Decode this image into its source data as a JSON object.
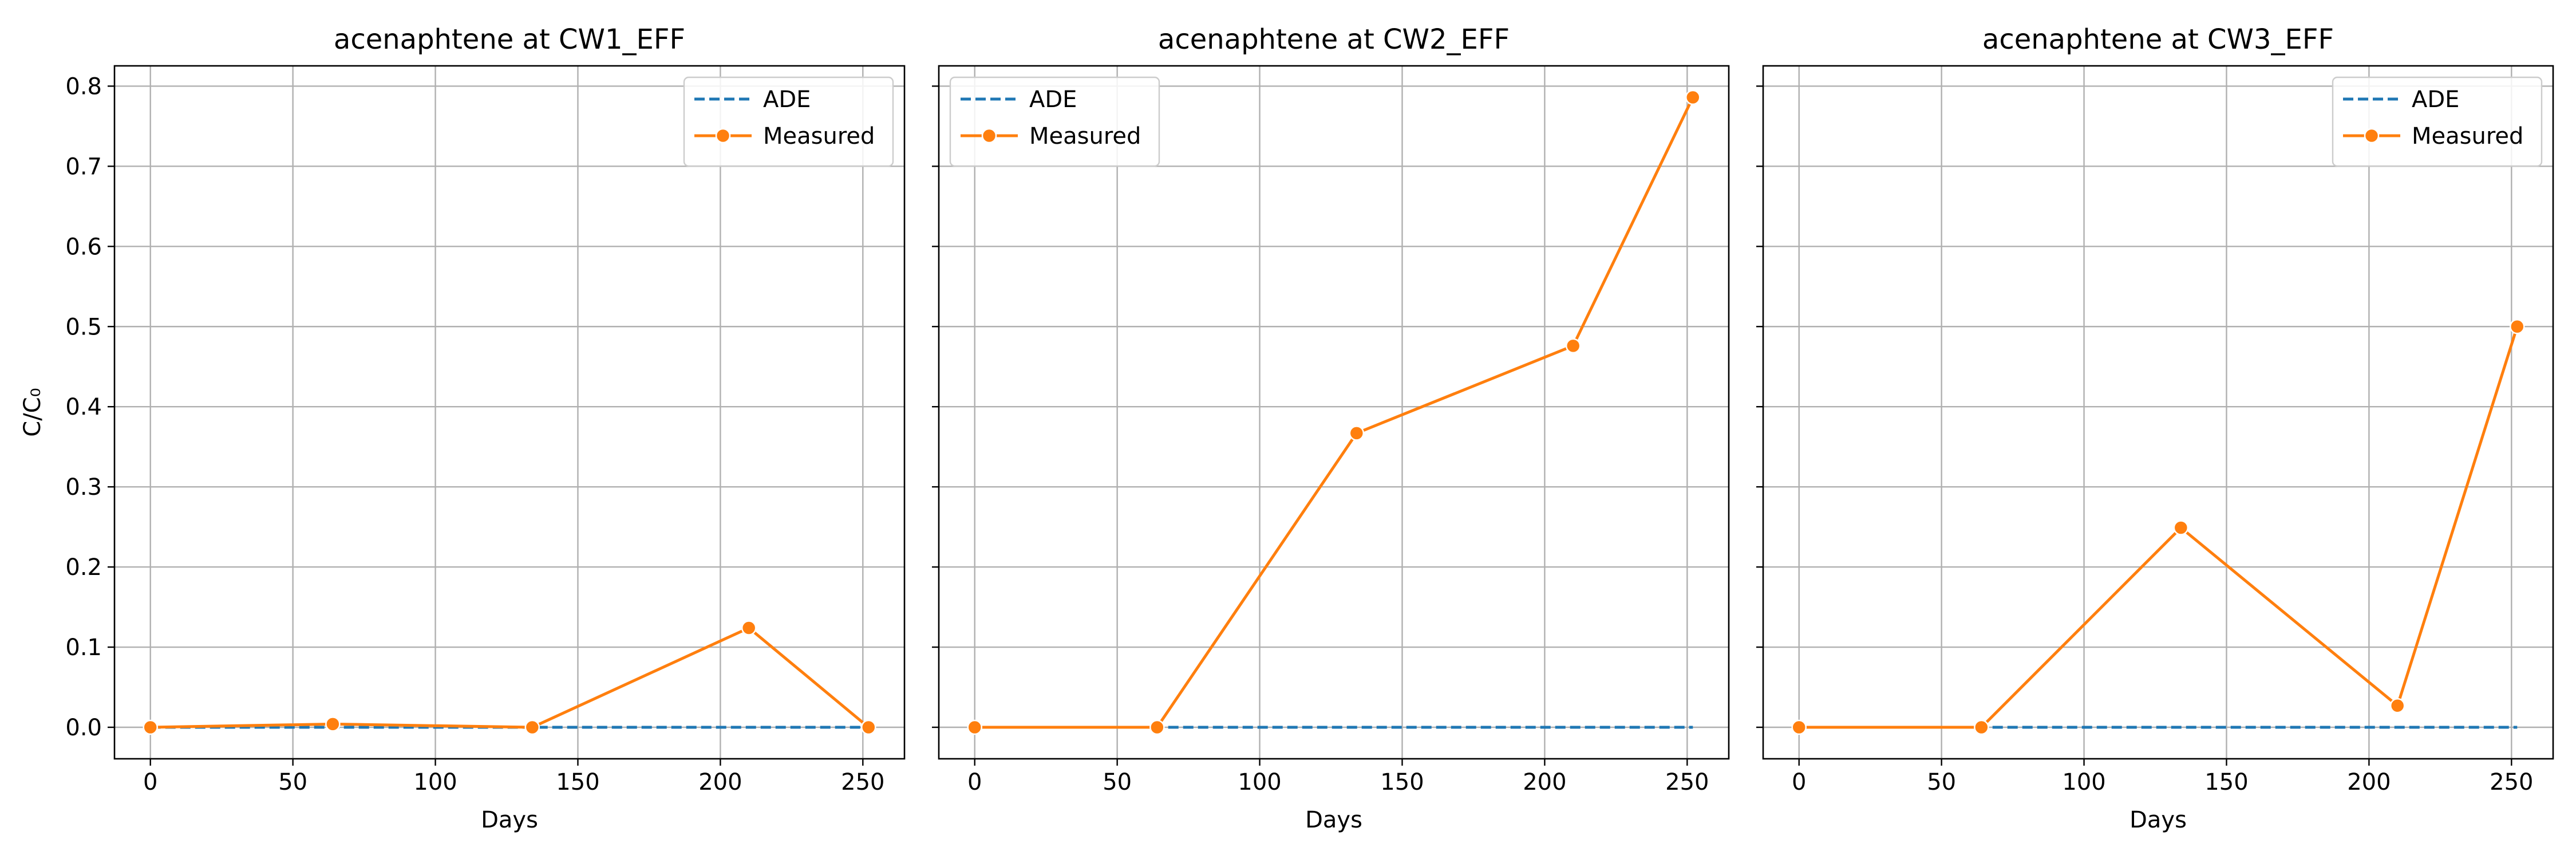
{
  "chart_data": [
    {
      "type": "line",
      "title": "acenaphtene at CW1_EFF",
      "xlabel": "Days",
      "ylabel": "C/C₀",
      "xlim": [
        -12.6,
        264.6
      ],
      "ylim": [
        -0.0393,
        0.8253
      ],
      "xticks": [
        0,
        50,
        100,
        150,
        200,
        250
      ],
      "xtick_labels": [
        "0",
        "50",
        "100",
        "150",
        "200",
        "250"
      ],
      "yticks": [
        0.0,
        0.1,
        0.2,
        0.3,
        0.4,
        0.5,
        0.6,
        0.7,
        0.8
      ],
      "ytick_labels": [
        "0.0",
        "0.1",
        "0.2",
        "0.3",
        "0.4",
        "0.5",
        "0.6",
        "0.7",
        "0.8"
      ],
      "grid": true,
      "legend_position": "top-right",
      "series": [
        {
          "name": "ADE",
          "style": "dashed",
          "color": "#1f77b4",
          "x": [
            0,
            252
          ],
          "y": [
            0.0,
            0.0
          ]
        },
        {
          "name": "Measured",
          "style": "solid-marker",
          "color": "#ff7f0e",
          "x": [
            0,
            64,
            134,
            210,
            252
          ],
          "y": [
            0.0,
            0.004,
            0.0,
            0.124,
            0.0
          ]
        }
      ]
    },
    {
      "type": "line",
      "title": "acenaphtene at CW2_EFF",
      "xlabel": "Days",
      "ylabel": "",
      "xlim": [
        -12.6,
        264.6
      ],
      "ylim": [
        -0.0393,
        0.8253
      ],
      "xticks": [
        0,
        50,
        100,
        150,
        200,
        250
      ],
      "xtick_labels": [
        "0",
        "50",
        "100",
        "150",
        "200",
        "250"
      ],
      "yticks": [
        0.0,
        0.1,
        0.2,
        0.3,
        0.4,
        0.5,
        0.6,
        0.7,
        0.8
      ],
      "ytick_labels": [],
      "grid": true,
      "legend_position": "top-left",
      "series": [
        {
          "name": "ADE",
          "style": "dashed",
          "color": "#1f77b4",
          "x": [
            0,
            252
          ],
          "y": [
            0.0,
            0.0
          ]
        },
        {
          "name": "Measured",
          "style": "solid-marker",
          "color": "#ff7f0e",
          "x": [
            0,
            64,
            134,
            210,
            252
          ],
          "y": [
            0.0,
            0.0,
            0.367,
            0.476,
            0.786
          ]
        }
      ]
    },
    {
      "type": "line",
      "title": "acenaphtene at CW3_EFF",
      "xlabel": "Days",
      "ylabel": "",
      "xlim": [
        -12.6,
        264.6
      ],
      "ylim": [
        -0.0393,
        0.8253
      ],
      "xticks": [
        0,
        50,
        100,
        150,
        200,
        250
      ],
      "xtick_labels": [
        "0",
        "50",
        "100",
        "150",
        "200",
        "250"
      ],
      "yticks": [
        0.0,
        0.1,
        0.2,
        0.3,
        0.4,
        0.5,
        0.6,
        0.7,
        0.8
      ],
      "ytick_labels": [],
      "grid": true,
      "legend_position": "top-right",
      "series": [
        {
          "name": "ADE",
          "style": "dashed",
          "color": "#1f77b4",
          "x": [
            0,
            252
          ],
          "y": [
            0.0,
            0.0
          ]
        },
        {
          "name": "Measured",
          "style": "solid-marker",
          "color": "#ff7f0e",
          "x": [
            0,
            64,
            134,
            210,
            252
          ],
          "y": [
            0.0,
            0.0,
            0.249,
            0.027,
            0.5
          ]
        }
      ]
    }
  ]
}
